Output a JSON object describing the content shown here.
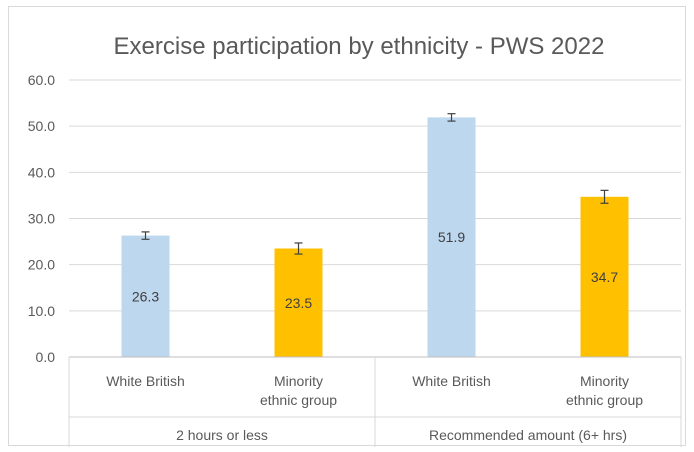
{
  "chart_data": {
    "type": "bar",
    "title": "Exercise participation by ethnicity - PWS 2022",
    "xlabel": "",
    "ylabel": "",
    "ylim": [
      0,
      60
    ],
    "yticks": [
      "0.0",
      "10.0",
      "20.0",
      "30.0",
      "40.0",
      "50.0",
      "60.0"
    ],
    "grid": true,
    "groups": [
      {
        "label": "2 hours or less",
        "bars": [
          {
            "category": "White British",
            "value": 26.3,
            "label": "26.3",
            "error": 0.8,
            "color": "#bdd7ee"
          },
          {
            "category": "Minority ethnic group",
            "value": 23.5,
            "label": "23.5",
            "error": 1.2,
            "color": "#ffc000"
          }
        ]
      },
      {
        "label": "Recommended amount (6+ hrs)",
        "bars": [
          {
            "category": "White British",
            "value": 51.9,
            "label": "51.9",
            "error": 0.8,
            "color": "#bdd7ee"
          },
          {
            "category": "Minority ethnic group",
            "value": 34.7,
            "label": "34.7",
            "error": 1.4,
            "color": "#ffc000"
          }
        ]
      }
    ]
  }
}
